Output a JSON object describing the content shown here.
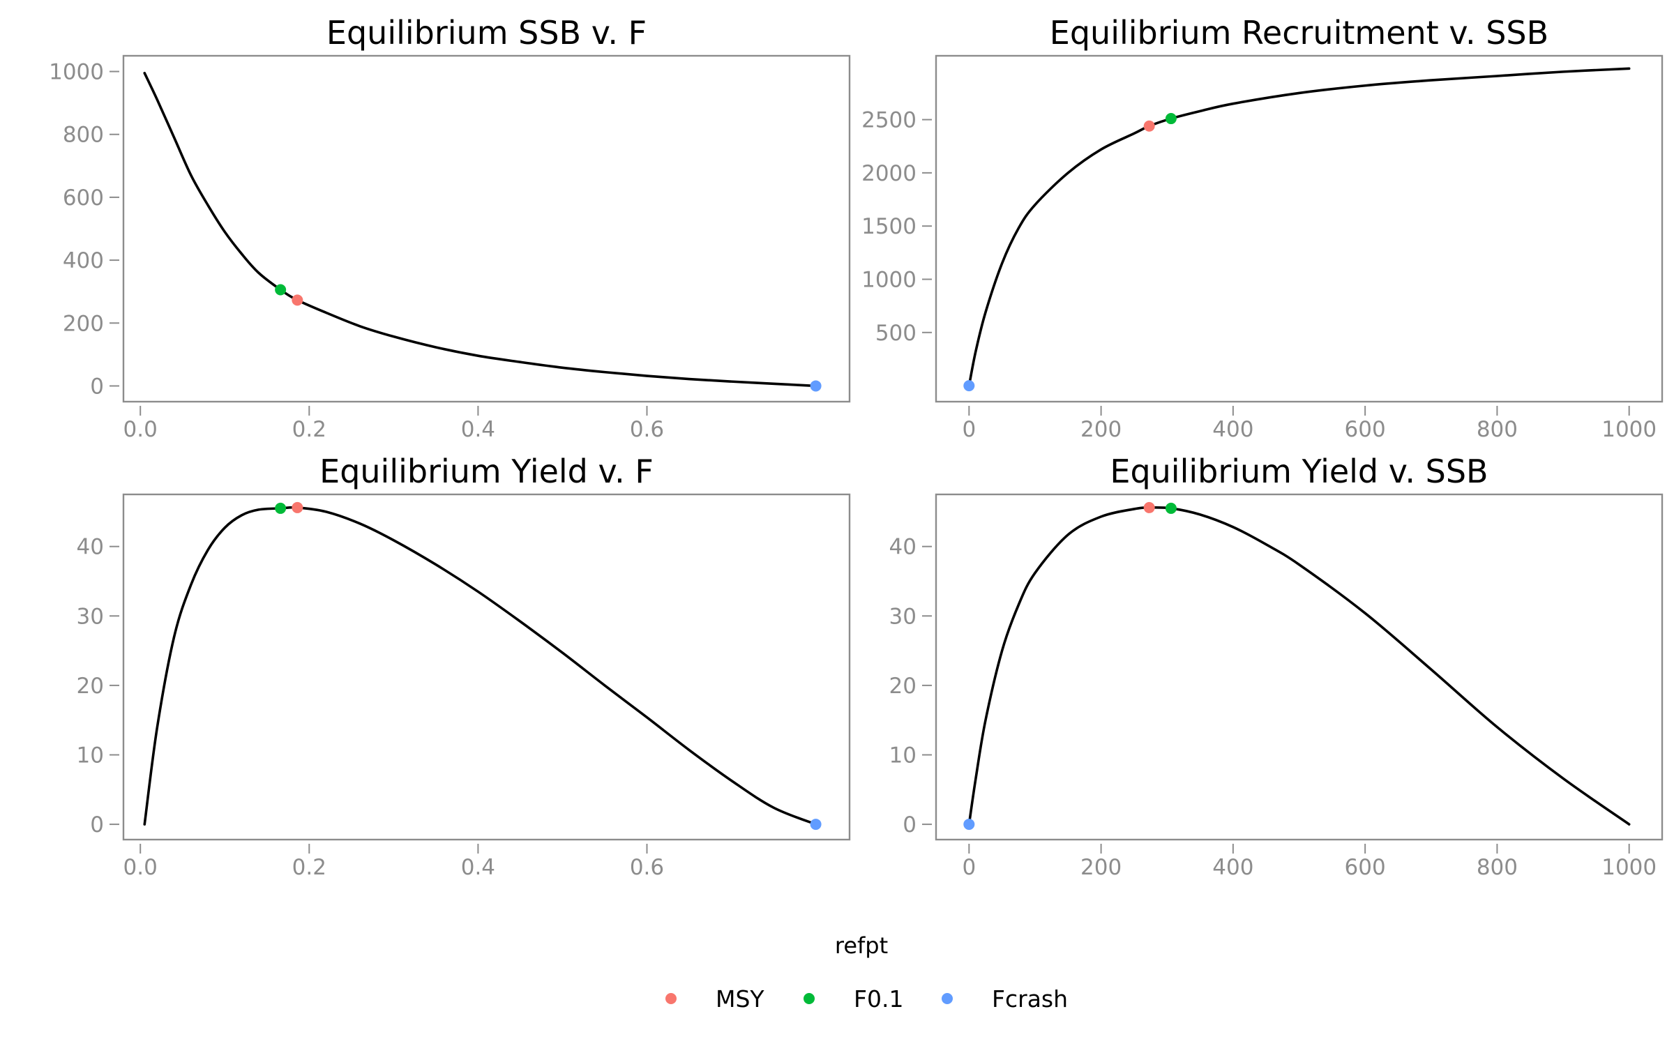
{
  "chart_data": [
    {
      "type": "line",
      "title": "Equilibrium SSB v. F",
      "xlabel": "",
      "ylabel": "",
      "xlim": [
        -0.02,
        0.84
      ],
      "ylim": [
        -50,
        1050
      ],
      "x_ticks": [
        0.0,
        0.2,
        0.4,
        0.6
      ],
      "x_tick_labels": [
        "0.0",
        "0.2",
        "0.4",
        "0.6"
      ],
      "y_ticks": [
        0,
        200,
        400,
        600,
        800,
        1000
      ],
      "y_tick_labels": [
        "0",
        "200",
        "400",
        "600",
        "800",
        "1000"
      ],
      "series": [
        {
          "x": [
            0.005,
            0.02,
            0.04,
            0.06,
            0.08,
            0.1,
            0.12,
            0.14,
            0.166,
            0.186,
            0.22,
            0.26,
            0.3,
            0.35,
            0.4,
            0.45,
            0.5,
            0.55,
            0.6,
            0.65,
            0.7,
            0.75,
            0.8
          ],
          "y": [
            995,
            910,
            790,
            670,
            575,
            490,
            420,
            360,
            306,
            273,
            233,
            190,
            157,
            123,
            96,
            76,
            58,
            44,
            32,
            22,
            14,
            7,
            0
          ]
        }
      ],
      "points": [
        {
          "refpt": "MSY",
          "x": 0.186,
          "y": 273
        },
        {
          "refpt": "F0.1",
          "x": 0.166,
          "y": 306
        },
        {
          "refpt": "Fcrash",
          "x": 0.8,
          "y": 0
        }
      ]
    },
    {
      "type": "line",
      "title": "Equilibrium Recruitment v. SSB",
      "xlabel": "",
      "ylabel": "",
      "xlim": [
        -50,
        1050
      ],
      "ylim": [
        -150,
        3100
      ],
      "x_ticks": [
        0,
        200,
        400,
        600,
        800,
        1000
      ],
      "x_tick_labels": [
        "0",
        "200",
        "400",
        "600",
        "800",
        "1000"
      ],
      "y_ticks": [
        500,
        1000,
        1500,
        2000,
        2500
      ],
      "y_tick_labels": [
        "500",
        "1000",
        "1500",
        "2000",
        "2500"
      ],
      "series": [
        {
          "x": [
            0,
            10,
            25,
            50,
            75,
            100,
            150,
            200,
            250,
            273,
            306,
            350,
            400,
            500,
            600,
            700,
            800,
            900,
            1000
          ],
          "y": [
            0,
            320,
            690,
            1150,
            1480,
            1700,
            2000,
            2220,
            2370,
            2440,
            2510,
            2580,
            2650,
            2750,
            2820,
            2870,
            2910,
            2950,
            2980
          ]
        }
      ],
      "points": [
        {
          "refpt": "MSY",
          "x": 273,
          "y": 2440
        },
        {
          "refpt": "F0.1",
          "x": 306,
          "y": 2510
        },
        {
          "refpt": "Fcrash",
          "x": 0,
          "y": 0
        }
      ]
    },
    {
      "type": "line",
      "title": "Equilibrium Yield v. F",
      "xlabel": "",
      "ylabel": "",
      "xlim": [
        -0.02,
        0.84
      ],
      "ylim": [
        -2.2,
        47.5
      ],
      "x_ticks": [
        0.0,
        0.2,
        0.4,
        0.6
      ],
      "x_tick_labels": [
        "0.0",
        "0.2",
        "0.4",
        "0.6"
      ],
      "y_ticks": [
        0,
        10,
        20,
        30,
        40
      ],
      "y_tick_labels": [
        "0",
        "10",
        "20",
        "30",
        "40"
      ],
      "series": [
        {
          "x": [
            0.005,
            0.02,
            0.04,
            0.06,
            0.08,
            0.1,
            0.12,
            0.14,
            0.166,
            0.186,
            0.22,
            0.26,
            0.3,
            0.35,
            0.4,
            0.45,
            0.5,
            0.55,
            0.6,
            0.65,
            0.7,
            0.75,
            0.8
          ],
          "y": [
            0,
            14,
            27,
            34.5,
            39.5,
            42.7,
            44.5,
            45.3,
            45.5,
            45.6,
            45.0,
            43.3,
            40.9,
            37.4,
            33.5,
            29.2,
            24.7,
            20.0,
            15.4,
            10.7,
            6.3,
            2.4,
            0
          ]
        }
      ],
      "points": [
        {
          "refpt": "MSY",
          "x": 0.186,
          "y": 45.6
        },
        {
          "refpt": "F0.1",
          "x": 0.166,
          "y": 45.5
        },
        {
          "refpt": "Fcrash",
          "x": 0.8,
          "y": 0
        }
      ]
    },
    {
      "type": "line",
      "title": "Equilibrium Yield v. SSB",
      "xlabel": "",
      "ylabel": "",
      "xlim": [
        -50,
        1050
      ],
      "ylim": [
        -2.2,
        47.5
      ],
      "x_ticks": [
        0,
        200,
        400,
        600,
        800,
        1000
      ],
      "x_tick_labels": [
        "0",
        "200",
        "400",
        "600",
        "800",
        "1000"
      ],
      "y_ticks": [
        0,
        10,
        20,
        30,
        40
      ],
      "y_tick_labels": [
        "0",
        "10",
        "20",
        "30",
        "40"
      ],
      "series": [
        {
          "x": [
            0,
            10,
            25,
            50,
            75,
            100,
            150,
            200,
            250,
            273,
            306,
            350,
            400,
            450,
            500,
            600,
            700,
            800,
            900,
            1000
          ],
          "y": [
            0,
            6.5,
            15,
            25,
            31.6,
            36.2,
            41.7,
            44.3,
            45.4,
            45.6,
            45.5,
            44.6,
            42.8,
            40.3,
            37.4,
            30.4,
            22.3,
            14.0,
            6.6,
            0
          ]
        }
      ],
      "points": [
        {
          "refpt": "MSY",
          "x": 273,
          "y": 45.6
        },
        {
          "refpt": "F0.1",
          "x": 306,
          "y": 45.5
        },
        {
          "refpt": "Fcrash",
          "x": 0,
          "y": 0
        }
      ]
    }
  ],
  "legend": {
    "title": "refpt",
    "position": "bottom",
    "items": [
      {
        "label": "MSY",
        "color": "#F8766D"
      },
      {
        "label": "F0.1",
        "color": "#00BA38"
      },
      {
        "label": "Fcrash",
        "color": "#619CFF"
      }
    ]
  },
  "style": {
    "line_color": "#000000",
    "axis_color": "#8c8c8c",
    "background": "#ffffff",
    "grid": false
  }
}
